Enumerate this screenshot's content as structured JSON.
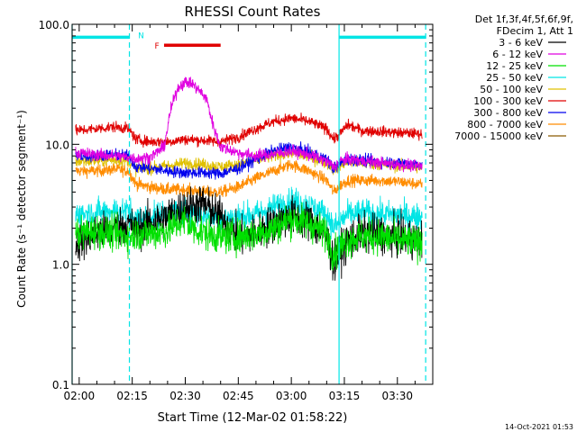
{
  "chart_data": {
    "type": "line",
    "title": "RHESSI Count Rates",
    "xlabel": "Start Time (12-Mar-02 01:58:22)",
    "ylabel": "Count Rate (s⁻¹ detector segment⁻¹)",
    "yscale": "log",
    "ylim": [
      0.1,
      100.0
    ],
    "x_unit": "minutes after 02:00 UT",
    "xlim": [
      -2.0,
      100.0
    ],
    "x_ticks": [
      {
        "value": 0,
        "label": "02:00"
      },
      {
        "value": 15,
        "label": "02:15"
      },
      {
        "value": 30,
        "label": "02:30"
      },
      {
        "value": 45,
        "label": "02:45"
      },
      {
        "value": 60,
        "label": "03:00"
      },
      {
        "value": 75,
        "label": "03:15"
      },
      {
        "value": 90,
        "label": "03:30"
      }
    ],
    "y_ticks": [
      {
        "value": 0.1,
        "label": "0.1"
      },
      {
        "value": 1.0,
        "label": "1.0"
      },
      {
        "value": 10.0,
        "label": "10.0"
      },
      {
        "value": 100.0,
        "label": "100.0"
      }
    ],
    "grid": false,
    "legend": {
      "placement": "right",
      "header": [
        "Det 1f,3f,4f,5f,6f,9f,",
        "FDecim 1, Att 1"
      ]
    },
    "time_markers": [
      {
        "x": -2.0,
        "style": "solid"
      },
      {
        "x": 14.2,
        "style": "dashed"
      },
      {
        "x": 73.5,
        "style": "solid"
      },
      {
        "x": 98.0,
        "style": "dashed"
      }
    ],
    "status_bars": [
      {
        "label": "",
        "color": "#00e5e5",
        "ranges": [
          [
            -2.0,
            14.2
          ],
          [
            73.5,
            98.0
          ]
        ],
        "level": 78.0
      },
      {
        "label": "N",
        "color": "#00e5e5",
        "x": 17.5,
        "level": 82.0
      },
      {
        "label": "F",
        "color": "#e00000",
        "ranges": [
          [
            24.0,
            40.0
          ]
        ],
        "level": 67.0,
        "label_x": 22.0
      }
    ],
    "footer_date": "14-Oct-2021 01:53",
    "series": [
      {
        "name": "3 - 6 keV",
        "color": "#000000",
        "noise": 0.16,
        "x": [
          -1,
          5,
          10,
          14,
          16,
          20,
          25,
          30,
          35,
          40,
          45,
          50,
          55,
          60,
          65,
          70,
          72,
          74,
          76,
          80,
          85,
          90,
          95,
          97
        ],
        "values": [
          1.5,
          1.8,
          2.0,
          2.2,
          1.9,
          2.2,
          2.5,
          3.0,
          3.2,
          2.5,
          1.7,
          1.8,
          2.2,
          2.5,
          2.3,
          1.7,
          1.0,
          1.3,
          1.6,
          1.8,
          1.8,
          1.7,
          1.6,
          1.6
        ]
      },
      {
        "name": "6 - 12 keV",
        "color": "#e000e0",
        "noise": 0.05,
        "x": [
          -1,
          5,
          10,
          14,
          16,
          20,
          24,
          26,
          28,
          30,
          32,
          34,
          36,
          38,
          40,
          45,
          50,
          55,
          60,
          65,
          70,
          72,
          74,
          76,
          80,
          85,
          90,
          95,
          97
        ],
        "values": [
          8.5,
          8.2,
          8.0,
          7.8,
          7.6,
          7.8,
          9.5,
          20.0,
          30.0,
          33.0,
          32.0,
          28.0,
          24.0,
          14.0,
          9.5,
          8.5,
          8.0,
          8.3,
          8.8,
          8.2,
          7.2,
          6.5,
          7.3,
          7.5,
          7.3,
          7.0,
          6.8,
          6.6,
          6.5
        ]
      },
      {
        "name": "12 - 25 keV",
        "color": "#00e000",
        "noise": 0.14,
        "x": [
          -1,
          5,
          10,
          14,
          16,
          20,
          25,
          28,
          30,
          32,
          34,
          36,
          40,
          45,
          50,
          55,
          60,
          65,
          70,
          72,
          74,
          76,
          80,
          85,
          90,
          95,
          97
        ],
        "values": [
          1.8,
          1.9,
          1.8,
          1.7,
          1.8,
          1.8,
          1.9,
          2.2,
          2.3,
          2.0,
          1.9,
          1.8,
          1.7,
          1.7,
          1.8,
          2.0,
          2.4,
          2.2,
          1.8,
          1.2,
          1.4,
          1.6,
          1.7,
          1.7,
          1.6,
          1.5,
          1.5
        ]
      },
      {
        "name": "25 - 50 keV",
        "color": "#00e5e5",
        "noise": 0.11,
        "x": [
          -1,
          5,
          10,
          14,
          16,
          20,
          25,
          30,
          35,
          40,
          45,
          50,
          55,
          60,
          65,
          70,
          72,
          74,
          76,
          80,
          85,
          90,
          95,
          97
        ],
        "values": [
          2.6,
          2.7,
          2.8,
          2.8,
          2.4,
          2.5,
          2.7,
          2.8,
          2.6,
          2.4,
          2.5,
          2.6,
          3.0,
          3.4,
          3.1,
          2.6,
          2.0,
          2.3,
          2.6,
          2.7,
          2.6,
          2.6,
          2.5,
          2.5
        ]
      },
      {
        "name": "50 - 100 keV",
        "color": "#e0c000",
        "noise": 0.05,
        "x": [
          -1,
          5,
          10,
          14,
          16,
          20,
          25,
          30,
          35,
          40,
          45,
          50,
          55,
          60,
          65,
          70,
          72,
          74,
          76,
          80,
          85,
          90,
          95,
          97
        ],
        "values": [
          7.2,
          7.3,
          7.4,
          7.3,
          6.2,
          6.3,
          6.6,
          7.0,
          6.8,
          6.5,
          6.8,
          7.4,
          8.0,
          8.5,
          7.8,
          7.0,
          6.2,
          6.7,
          7.1,
          7.0,
          6.8,
          6.6,
          6.5,
          6.4
        ]
      },
      {
        "name": "100 - 300 keV",
        "color": "#e00000",
        "noise": 0.045,
        "x": [
          -1,
          5,
          10,
          14,
          16,
          20,
          25,
          30,
          35,
          40,
          45,
          50,
          55,
          60,
          65,
          70,
          72,
          74,
          76,
          80,
          85,
          90,
          95,
          97
        ],
        "values": [
          13.0,
          13.5,
          14.0,
          13.5,
          11.0,
          10.5,
          10.5,
          11.0,
          10.8,
          10.5,
          11.5,
          13.5,
          15.5,
          16.5,
          15.5,
          13.5,
          11.0,
          12.5,
          14.5,
          13.0,
          12.8,
          12.5,
          12.3,
          12.2
        ]
      },
      {
        "name": "300 - 800 keV",
        "color": "#0000ee",
        "noise": 0.05,
        "x": [
          -1,
          5,
          10,
          14,
          16,
          20,
          25,
          30,
          35,
          40,
          45,
          50,
          55,
          60,
          65,
          70,
          72,
          74,
          76,
          80,
          85,
          90,
          95,
          97
        ],
        "values": [
          8.0,
          8.0,
          8.2,
          8.0,
          6.5,
          6.3,
          6.0,
          5.8,
          5.8,
          5.7,
          6.3,
          7.5,
          8.8,
          9.5,
          8.5,
          7.5,
          6.2,
          7.0,
          7.6,
          7.3,
          7.2,
          7.0,
          6.9,
          6.8
        ]
      },
      {
        "name": "800 - 7000 keV",
        "color": "#ff8c00",
        "noise": 0.05,
        "x": [
          -1,
          5,
          10,
          14,
          16,
          20,
          25,
          30,
          35,
          40,
          45,
          50,
          55,
          60,
          65,
          70,
          72,
          74,
          76,
          80,
          85,
          90,
          95,
          97
        ],
        "values": [
          6.0,
          6.0,
          6.2,
          6.0,
          4.7,
          4.4,
          4.2,
          4.2,
          4.0,
          4.0,
          4.4,
          5.2,
          6.0,
          6.8,
          6.0,
          5.0,
          4.0,
          4.6,
          5.0,
          5.0,
          5.0,
          4.9,
          4.7,
          4.6
        ]
      },
      {
        "name": "7000 - 15000 keV",
        "color": "#8b5a00",
        "noise": 0.05,
        "x": [
          -1,
          97
        ],
        "values": [
          6.4,
          6.3
        ]
      }
    ]
  }
}
